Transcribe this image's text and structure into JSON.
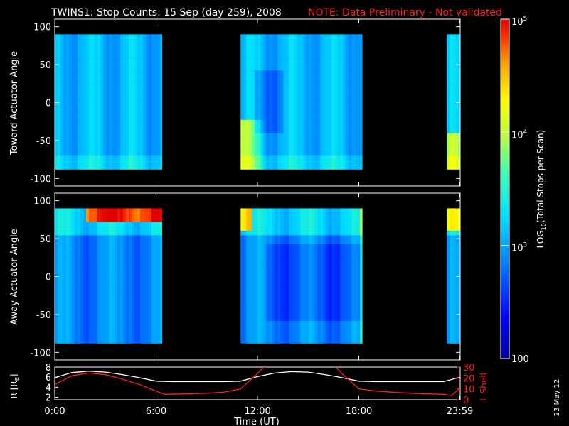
{
  "header": {
    "title": "TWINS1: Stop Counts: 15 Sep (day 259), 2008",
    "note": "NOTE: Data Preliminary - Not validated"
  },
  "colors": {
    "background": "#000000",
    "axes": "#ffffff",
    "note": "#ff2020",
    "r_line": "#ffffff",
    "lshell_line": "#ff2020"
  },
  "chart_data": [
    {
      "type": "heatmap",
      "ylabel": "Toward Actuator Angle",
      "ylim": [
        -110,
        110
      ],
      "yticks": [
        "100",
        "50",
        "0",
        "-50",
        "-100"
      ],
      "ytick_values": [
        100,
        50,
        0,
        -50,
        -100
      ],
      "data_angle_range": [
        -88,
        90
      ],
      "time_range_hours": [
        0,
        24
      ],
      "data_intervals_hours": [
        [
          0,
          6.35
        ],
        [
          11.0,
          18.2
        ],
        [
          23.2,
          24.0
        ]
      ],
      "colormap": "rainbow",
      "dominant_level": "~10^3 (cyan/blue)"
    },
    {
      "type": "heatmap",
      "ylabel": "Away Actuator Angle",
      "ylim": [
        -110,
        110
      ],
      "yticks": [
        "100",
        "50",
        "0",
        "-50",
        "-100"
      ],
      "ytick_values": [
        100,
        50,
        0,
        -50,
        -100
      ],
      "data_angle_range": [
        -88,
        90
      ],
      "time_range_hours": [
        0,
        24
      ],
      "data_intervals_hours": [
        [
          0,
          6.35
        ],
        [
          11.0,
          18.2
        ],
        [
          23.2,
          24.0
        ]
      ],
      "colormap": "rainbow",
      "dominant_level": "~10^3 (blue)"
    },
    {
      "type": "line",
      "ylabel_left": "R [R",
      "ylabel_left_sub": "E",
      "ylabel_left_end": "]",
      "ylabel_right": "L Shell",
      "left_ylim": [
        1.5,
        8
      ],
      "left_yticks": [
        "8",
        "6",
        "4",
        "2"
      ],
      "left_ytick_values": [
        8,
        6,
        4,
        2
      ],
      "right_ylim": [
        0,
        30
      ],
      "right_yticks": [
        "30",
        "20",
        "10",
        "0"
      ],
      "right_ytick_values": [
        30,
        20,
        10,
        0
      ],
      "xlabel": "Time (UT)",
      "xtick_labels": [
        "0:00",
        "6:00",
        "12:00",
        "18:00",
        "23:59"
      ],
      "xtick_values": [
        0,
        6,
        12,
        18,
        23.98
      ],
      "series": [
        {
          "axis": "left",
          "color": "#ffffff",
          "x": [
            0,
            1,
            2,
            3,
            4,
            5,
            6,
            7,
            8,
            9,
            10,
            11,
            12,
            13,
            14,
            15,
            16,
            17,
            18,
            19,
            20,
            21,
            22,
            23,
            24
          ],
          "values": [
            5.9,
            6.9,
            7.2,
            7.0,
            6.5,
            5.9,
            5.2,
            5.1,
            5.1,
            5.1,
            5.1,
            5.2,
            6.1,
            6.8,
            7.1,
            7.0,
            6.5,
            5.9,
            5.2,
            5.1,
            5.1,
            5.1,
            5.1,
            5.1,
            6.0
          ]
        },
        {
          "axis": "right",
          "color": "#ff2020",
          "x": [
            0,
            1,
            2,
            3,
            4,
            5,
            6,
            6.5,
            8,
            9,
            10,
            11,
            12,
            12.5,
            16.5,
            17,
            18,
            19,
            20,
            21,
            22,
            23,
            23.5,
            24
          ],
          "values": [
            14,
            22,
            24.5,
            23,
            19,
            14,
            8,
            5,
            5.5,
            6,
            7,
            10,
            24,
            32,
            32,
            24,
            10,
            8,
            7,
            6,
            5.5,
            5,
            4,
            11
          ]
        }
      ]
    },
    {
      "type": "colorbar",
      "label": "LOG",
      "label_sub": "10",
      "label_end": "(Total Stops per Scan)",
      "tick_labels": [
        "10",
        "5",
        "10",
        "4",
        "10",
        "3",
        "100"
      ],
      "ticks": [
        {
          "base": "10",
          "exp": "5",
          "value": 100000
        },
        {
          "base": "10",
          "exp": "4",
          "value": 10000
        },
        {
          "base": "10",
          "exp": "3",
          "value": 1000
        },
        {
          "base": "100",
          "exp": "",
          "value": 100
        }
      ],
      "range": [
        100,
        100000
      ],
      "scale": "log"
    }
  ],
  "footer": {
    "date_stamp": "23 May 12"
  }
}
